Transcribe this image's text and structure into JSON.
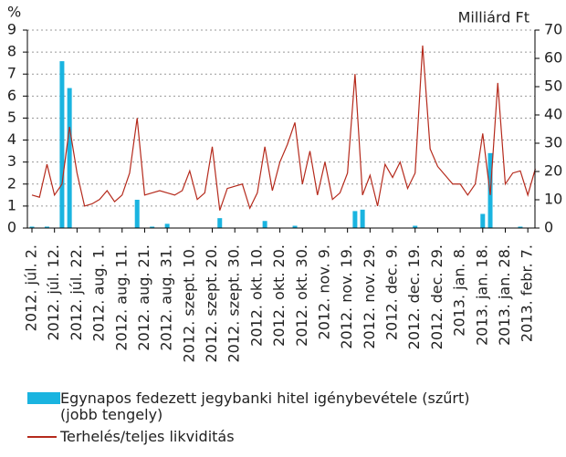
{
  "chart_data": {
    "type": "bar_line",
    "y_label": "%",
    "y2_label": "Milliárd Ft",
    "categories": [
      "2012. júl. 2.",
      null,
      null,
      "2012. júl. 12.",
      null,
      null,
      "2012. júl. 22.",
      null,
      null,
      "2012. aug. 1.",
      null,
      null,
      "2012. aug. 11.",
      null,
      null,
      "2012. aug. 21.",
      null,
      null,
      "2012. aug. 31.",
      null,
      null,
      "2012. szept. 10.",
      null,
      null,
      "2012. szept. 20.",
      null,
      null,
      "2012. szept. 30.",
      null,
      null,
      "2012. okt. 10.",
      null,
      null,
      "2012. okt. 20.",
      null,
      null,
      "2012. okt. 30.",
      null,
      null,
      "2012. nov. 9.",
      null,
      null,
      "2012. nov. 19.",
      null,
      null,
      "2012. nov. 29.",
      null,
      null,
      "2012. dec. 9.",
      null,
      null,
      "2012. dec. 19.",
      null,
      null,
      "2012. dec. 29.",
      null,
      null,
      "2013. jan. 8.",
      null,
      null,
      "2013. jan. 18.",
      null,
      null,
      "2013. jan. 28.",
      null,
      null,
      "2013. febr. 7.",
      null
    ],
    "series": [
      {
        "name": "Egynapos fedezett jegybanki hitel igénybevétele (szűrt) (jobb tengely)",
        "kind": "bar",
        "axis": "y2",
        "color": "#1ab4e0",
        "values": [
          0.5,
          0,
          0.5,
          0,
          59,
          49.5,
          0,
          0,
          0,
          0,
          0,
          0,
          0,
          0,
          10,
          0,
          0.5,
          0,
          1.5,
          0,
          0,
          0,
          0,
          0,
          0,
          3.5,
          0,
          0,
          0,
          0,
          0,
          2.5,
          0,
          0,
          0,
          0.8,
          0,
          0,
          0,
          0,
          0,
          0,
          0,
          6,
          6.5,
          0,
          0,
          0,
          0,
          0,
          0,
          0.8,
          0,
          0,
          0,
          0,
          0,
          0,
          0,
          0,
          5,
          26.5,
          0,
          0,
          0,
          0.5,
          0,
          0
        ]
      },
      {
        "name": "Terhelés/teljes likviditás",
        "kind": "line",
        "axis": "y",
        "color": "#b52a1c",
        "values": [
          1.5,
          1.4,
          2.9,
          1.5,
          2.0,
          4.6,
          2.5,
          1.0,
          1.1,
          1.3,
          1.7,
          1.2,
          1.5,
          2.5,
          5.0,
          1.5,
          1.6,
          1.7,
          1.6,
          1.5,
          1.7,
          2.6,
          1.3,
          1.6,
          3.7,
          0.8,
          1.8,
          1.9,
          2.0,
          0.9,
          1.6,
          3.7,
          1.7,
          3.0,
          3.8,
          4.8,
          2.0,
          3.5,
          1.5,
          3.0,
          1.3,
          1.6,
          2.5,
          7.0,
          1.5,
          2.4,
          1.0,
          2.9,
          2.3,
          3.0,
          1.8,
          2.5,
          8.3,
          3.6,
          2.8,
          2.4,
          2.0,
          2.0,
          1.5,
          2.0,
          4.3,
          1.5,
          6.6,
          2.0,
          2.5,
          2.6,
          1.5,
          2.7
        ]
      }
    ],
    "ylim": [
      0,
      9
    ],
    "yticks": [
      0,
      1,
      2,
      3,
      4,
      5,
      6,
      7,
      8,
      9
    ],
    "y2lim": [
      0,
      70
    ],
    "y2ticks": [
      0,
      10,
      20,
      30,
      40,
      50,
      60,
      70
    ],
    "grid": true
  }
}
